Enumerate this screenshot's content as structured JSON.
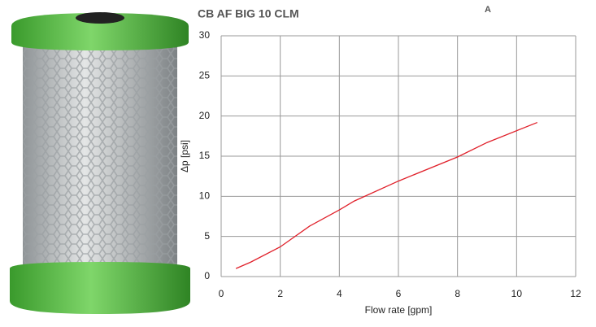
{
  "chart_data": {
    "type": "line",
    "title": "CB AF BIG 10 CLM",
    "annotation": "A",
    "x_label": "Flow rate [gpm]",
    "y_label": "Δp [psi]",
    "x": [
      0.5,
      1,
      2,
      3,
      4,
      4.5,
      6,
      8,
      9,
      10.7
    ],
    "series": [
      {
        "color": "#e0202a",
        "values": [
          1,
          1.8,
          3.7,
          6.3,
          8.3,
          9.4,
          11.9,
          14.9,
          16.7,
          19.2
        ]
      }
    ],
    "xlim": [
      0,
      12
    ],
    "xticks": [
      0,
      2,
      4,
      6,
      8,
      10,
      12
    ],
    "ylim": [
      0,
      30
    ],
    "yticks": [
      0,
      5,
      10,
      15,
      20,
      25,
      30
    ],
    "grid": true
  }
}
